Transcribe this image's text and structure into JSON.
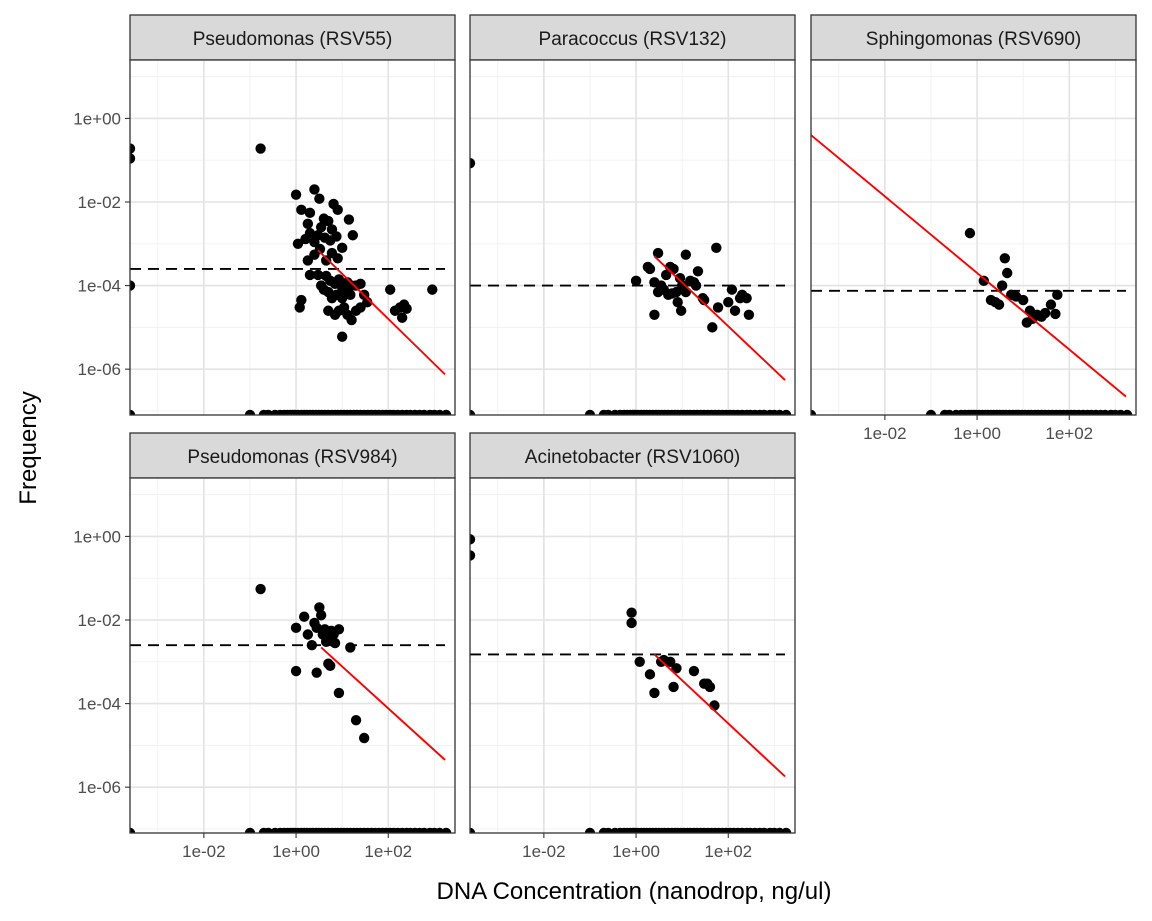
{
  "chart_data": {
    "type": "scatter",
    "xlabel": "DNA Concentration (nanodrop, ng/ul)",
    "ylabel": "Frequency",
    "x_scale": "log10",
    "y_scale": "log10",
    "xlim": [
      0.00025,
      2800
    ],
    "ylim": [
      8e-08,
      25
    ],
    "x_ticks": [
      0.01,
      1,
      100
    ],
    "x_tick_labels": [
      "1e-02",
      "1e+00",
      "1e+02"
    ],
    "y_ticks": [
      1e-06,
      0.0001,
      0.01,
      1
    ],
    "y_tick_labels": [
      "1e-06",
      "1e-04",
      "1e-02",
      "1e+00"
    ],
    "grid": true,
    "zero_x_value": 0.00025,
    "zero_y_value": 8e-08,
    "zero_x_rug": [
      0.00025,
      0.1,
      0.2,
      0.25,
      0.35,
      0.45,
      0.55,
      0.65,
      0.75,
      0.85,
      0.95,
      1.1,
      1.3,
      1.5,
      1.7,
      2,
      2.3,
      2.7,
      3.1,
      3.6,
      4.2,
      5,
      6,
      7,
      8,
      9.5,
      11,
      13,
      15,
      18,
      21,
      25,
      30,
      36,
      43,
      52,
      62,
      75,
      90,
      110,
      130,
      160,
      200,
      250,
      300,
      380,
      480,
      600,
      800,
      1000,
      1300,
      1800
    ],
    "panels": [
      {
        "strip": "Pseudomonas (RSV55)",
        "threshold": 0.00025,
        "fit_line": [
          [
            3,
            0.0007
          ],
          [
            1700,
            7.5e-07
          ]
        ],
        "points": [
          [
            0.00025,
            0.19
          ],
          [
            0.00025,
            0.11
          ],
          [
            0.00025,
            0.0001
          ],
          [
            0.17,
            0.19
          ],
          [
            1.0,
            0.015
          ],
          [
            1.3,
            0.0065
          ],
          [
            1.8,
            0.003
          ],
          [
            2.0,
            0.0055
          ],
          [
            2.5,
            0.02
          ],
          [
            3.2,
            0.012
          ],
          [
            4.0,
            0.004
          ],
          [
            5.0,
            0.0035
          ],
          [
            6.5,
            0.009
          ],
          [
            8.0,
            0.0065
          ],
          [
            14,
            0.0038
          ],
          [
            1.1,
            0.001
          ],
          [
            1.6,
            0.0013
          ],
          [
            2.0,
            0.0018
          ],
          [
            2.5,
            0.0011
          ],
          [
            3.0,
            0.0016
          ],
          [
            3.5,
            0.0025
          ],
          [
            4.2,
            0.0014
          ],
          [
            5.5,
            0.0012
          ],
          [
            6.0,
            0.0022
          ],
          [
            7.5,
            0.0015
          ],
          [
            10,
            0.0008
          ],
          [
            17,
            0.0016
          ],
          [
            1.8,
            0.0004
          ],
          [
            2.5,
            0.00055
          ],
          [
            3.3,
            0.00075
          ],
          [
            4.5,
            0.0004
          ],
          [
            6.0,
            0.0006
          ],
          [
            8.0,
            0.00045
          ],
          [
            2.0,
            0.00018
          ],
          [
            3.0,
            0.00018
          ],
          [
            3.5,
            0.0001
          ],
          [
            4.5,
            0.00017
          ],
          [
            5.5,
            0.00013
          ],
          [
            7.0,
            0.00011
          ],
          [
            8.5,
            0.00014
          ],
          [
            10,
            9e-05
          ],
          [
            13,
            0.00012
          ],
          [
            16,
            0.0001
          ],
          [
            4.0,
            8e-05
          ],
          [
            5.0,
            7e-05
          ],
          [
            6.0,
            5e-05
          ],
          [
            7.5,
            6e-05
          ],
          [
            10,
            5e-05
          ],
          [
            12,
            7e-05
          ],
          [
            15,
            6e-05
          ],
          [
            20,
            0.0001
          ],
          [
            25,
            0.00011
          ],
          [
            30,
            6e-05
          ],
          [
            35,
            4e-05
          ],
          [
            1.3,
            4.5e-05
          ],
          [
            1.2,
            3e-05
          ],
          [
            5.0,
            2.5e-05
          ],
          [
            7.0,
            2e-05
          ],
          [
            8.5,
            2.5e-05
          ],
          [
            11,
            3e-05
          ],
          [
            13,
            2e-05
          ],
          [
            16,
            1.5e-05
          ],
          [
            20,
            2.5e-05
          ],
          [
            25,
            3e-05
          ],
          [
            10,
            6e-06
          ],
          [
            110,
            8e-05
          ],
          [
            140,
            2.5e-05
          ],
          [
            180,
            3e-05
          ],
          [
            200,
            1.7e-05
          ],
          [
            220,
            3.5e-05
          ],
          [
            250,
            2.8e-05
          ],
          [
            900,
            8e-05
          ]
        ]
      },
      {
        "strip": "Paracoccus (RSV132)",
        "threshold": 0.0001,
        "fit_line": [
          [
            2.5,
            0.0005
          ],
          [
            1700,
            5.5e-07
          ]
        ],
        "points": [
          [
            0.00025,
            0.085
          ],
          [
            1.0,
            0.00013
          ],
          [
            1.8,
            0.00028
          ],
          [
            2.0,
            0.00025
          ],
          [
            3.0,
            0.0006
          ],
          [
            3.5,
            0.0001
          ],
          [
            4.5,
            0.00018
          ],
          [
            5.5,
            0.00028
          ],
          [
            6.5,
            0.00025
          ],
          [
            7.5,
            7e-05
          ],
          [
            9.0,
            0.00015
          ],
          [
            12,
            0.00055
          ],
          [
            15,
            0.00013
          ],
          [
            18,
            0.00012
          ],
          [
            20,
            0.0001
          ],
          [
            22,
            0.00022
          ],
          [
            28,
            5e-05
          ],
          [
            55,
            0.0008
          ],
          [
            60,
            3e-05
          ],
          [
            30,
            4.5e-05
          ],
          [
            2.5,
            0.00012
          ],
          [
            3.0,
            7e-05
          ],
          [
            4.0,
            8e-05
          ],
          [
            5.0,
            6e-05
          ],
          [
            6.0,
            6.5e-05
          ],
          [
            8.0,
            4e-05
          ],
          [
            10,
            0.0001
          ],
          [
            12,
            7e-05
          ],
          [
            2.5,
            2e-05
          ],
          [
            9.5,
            2.5e-05
          ],
          [
            100,
            4e-05
          ],
          [
            120,
            8e-05
          ],
          [
            140,
            2.5e-05
          ],
          [
            180,
            5e-05
          ],
          [
            200,
            6e-05
          ],
          [
            250,
            5e-05
          ],
          [
            280,
            2e-05
          ],
          [
            45,
            1e-05
          ]
        ]
      },
      {
        "strip": "Sphingomonas (RSV690)",
        "threshold": 7.5e-05,
        "fit_line": [
          [
            0.00025,
            0.4
          ],
          [
            1700,
            2.2e-07
          ]
        ],
        "points": [
          [
            0.7,
            0.0018
          ],
          [
            1.4,
            0.00013
          ],
          [
            2.0,
            4.5e-05
          ],
          [
            2.5,
            4e-05
          ],
          [
            3.0,
            3.5e-05
          ],
          [
            3.5,
            0.0001
          ],
          [
            4.0,
            0.00045
          ],
          [
            4.5,
            0.0002
          ],
          [
            5.5,
            6e-05
          ],
          [
            7.0,
            5.5e-05
          ],
          [
            10,
            4.5e-05
          ],
          [
            12,
            1.3e-05
          ],
          [
            14,
            2.5e-05
          ],
          [
            16,
            1.6e-05
          ],
          [
            20,
            2e-05
          ],
          [
            25,
            1.8e-05
          ],
          [
            30,
            2.2e-05
          ],
          [
            40,
            3.5e-05
          ],
          [
            50,
            2.1e-05
          ],
          [
            55,
            6e-05
          ]
        ]
      },
      {
        "strip": "Pseudomonas (RSV984)",
        "threshold": 0.0025,
        "fit_line": [
          [
            3.5,
            0.0022
          ],
          [
            1700,
            4.5e-06
          ]
        ],
        "points": [
          [
            0.17,
            0.055
          ],
          [
            1.0,
            0.0065
          ],
          [
            1.0,
            0.0006
          ],
          [
            1.5,
            0.012
          ],
          [
            1.8,
            0.0045
          ],
          [
            2.2,
            0.0025
          ],
          [
            2.5,
            0.0085
          ],
          [
            2.8,
            0.0065
          ],
          [
            3.2,
            0.02
          ],
          [
            3.5,
            0.013
          ],
          [
            3.8,
            0.0045
          ],
          [
            4.2,
            0.006
          ],
          [
            4.5,
            0.003
          ],
          [
            5.0,
            0.0035
          ],
          [
            5.5,
            0.0008
          ],
          [
            5.8,
            0.0055
          ],
          [
            6.5,
            0.0045
          ],
          [
            7.0,
            0.0028
          ],
          [
            8.5,
            0.006
          ],
          [
            5.0,
            0.0009
          ],
          [
            2.8,
            0.00055
          ],
          [
            8.5,
            0.00018
          ],
          [
            15,
            0.0022
          ],
          [
            20,
            4e-05
          ],
          [
            30,
            1.5e-05
          ]
        ]
      },
      {
        "strip": "Acinetobacter (RSV1060)",
        "threshold": 0.0015,
        "fit_line": [
          [
            2.5,
            0.0015
          ],
          [
            1700,
            1.8e-06
          ]
        ],
        "points": [
          [
            0.00025,
            0.85
          ],
          [
            0.00025,
            0.35
          ],
          [
            0.8,
            0.015
          ],
          [
            0.8,
            0.0085
          ],
          [
            1.2,
            0.001
          ],
          [
            2.0,
            0.0005
          ],
          [
            2.5,
            0.00018
          ],
          [
            3.5,
            0.001
          ],
          [
            4.0,
            0.0011
          ],
          [
            5.5,
            0.001
          ],
          [
            6.5,
            0.00025
          ],
          [
            7.5,
            0.0007
          ],
          [
            18,
            0.0006
          ],
          [
            30,
            0.0003
          ],
          [
            35,
            0.0003
          ],
          [
            40,
            0.00025
          ],
          [
            50,
            9e-05
          ]
        ]
      }
    ]
  }
}
